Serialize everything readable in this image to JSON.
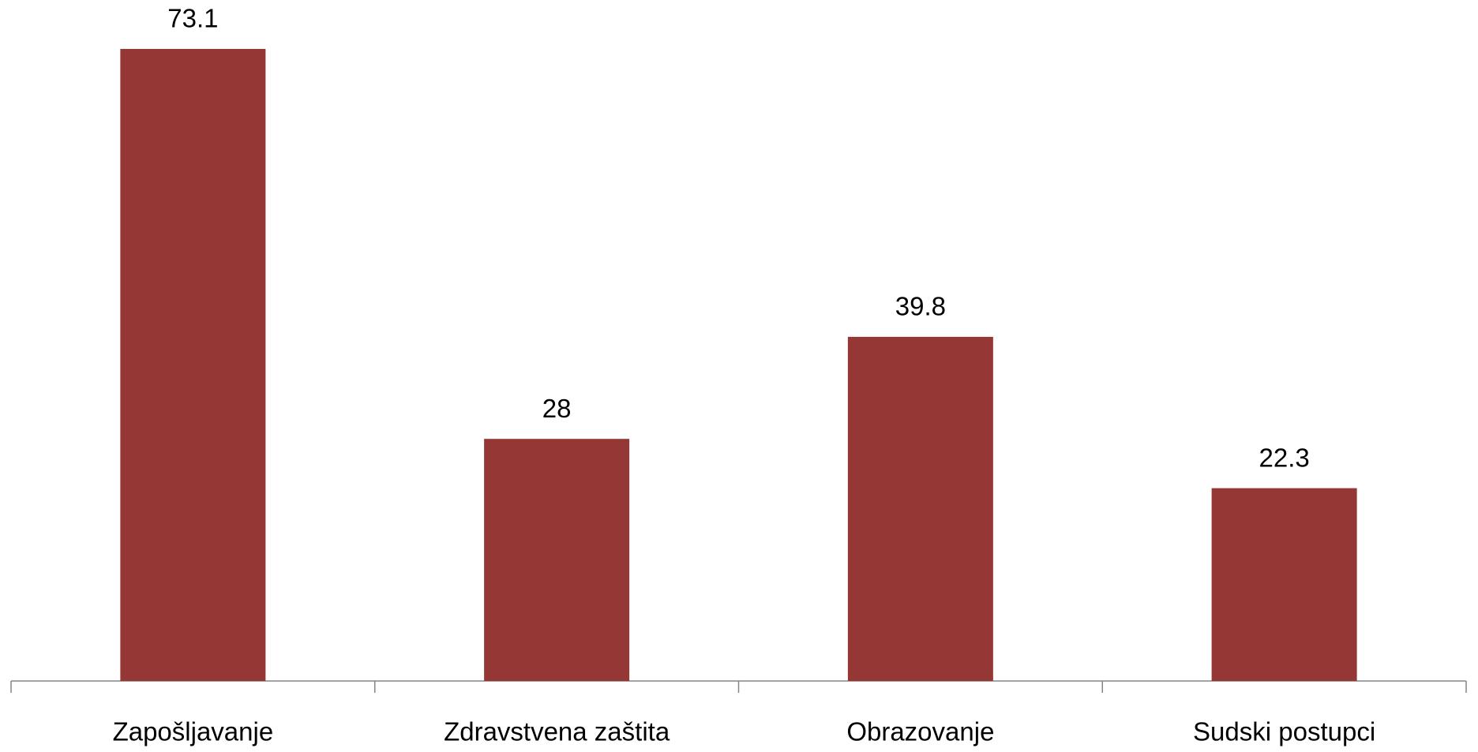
{
  "chart_data": {
    "type": "bar",
    "categories": [
      "Zapošljavanje",
      "Zdravstvena zaštita",
      "Obrazovanje",
      "Sudski postupci"
    ],
    "values": [
      73.1,
      28,
      39.8,
      22.3
    ],
    "color": "#953735",
    "data_labels": true
  }
}
